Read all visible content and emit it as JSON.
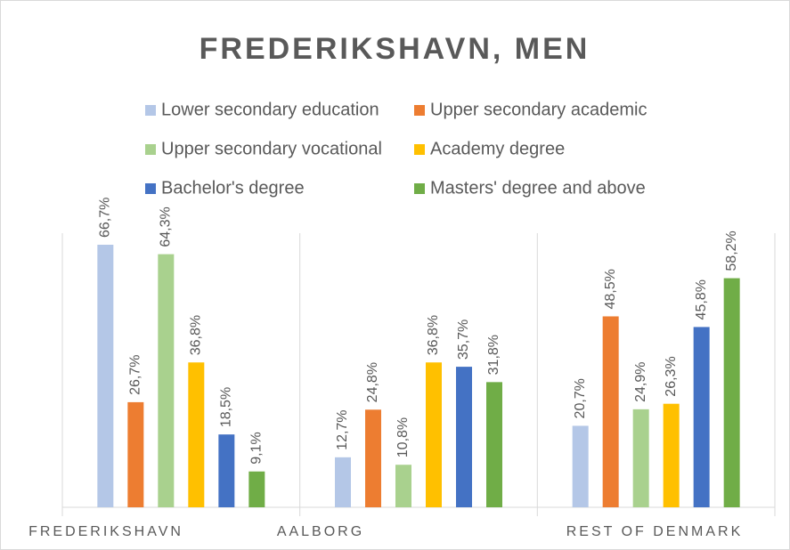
{
  "chart_data": {
    "type": "bar",
    "title": "FREDERIKSHAVN, MEN",
    "categories": [
      "FREDERIKSHAVN",
      "AALBORG",
      "REST OF DENMARK"
    ],
    "series": [
      {
        "name": "Lower secondary education",
        "color": "#b4c7e7",
        "values": [
          66.7,
          12.7,
          20.7
        ],
        "value_labels": [
          "66,7%",
          "12,7%",
          "20,7%"
        ]
      },
      {
        "name": "Upper secondary academic",
        "color": "#ed7d31",
        "values": [
          26.7,
          24.8,
          48.5
        ],
        "value_labels": [
          "26,7%",
          "24,8%",
          "48,5%"
        ]
      },
      {
        "name": "Upper secondary vocational",
        "color": "#a9d18e",
        "values": [
          64.3,
          10.8,
          24.9
        ],
        "value_labels": [
          "64,3%",
          "10,8%",
          "24,9%"
        ]
      },
      {
        "name": "Academy degree",
        "color": "#ffc000",
        "values": [
          36.8,
          36.8,
          26.3
        ],
        "value_labels": [
          "36,8%",
          "36,8%",
          "26,3%"
        ]
      },
      {
        "name": "Bachelor's degree",
        "color": "#4472c4",
        "values": [
          18.5,
          35.7,
          45.8
        ],
        "value_labels": [
          "18,5%",
          "35,7%",
          "45,8%"
        ]
      },
      {
        "name": "Masters' degree and above",
        "color": "#70ad47",
        "values": [
          9.1,
          31.8,
          58.2
        ],
        "value_labels": [
          "9,1%",
          "31,8%",
          "58,2%"
        ]
      }
    ]
  }
}
